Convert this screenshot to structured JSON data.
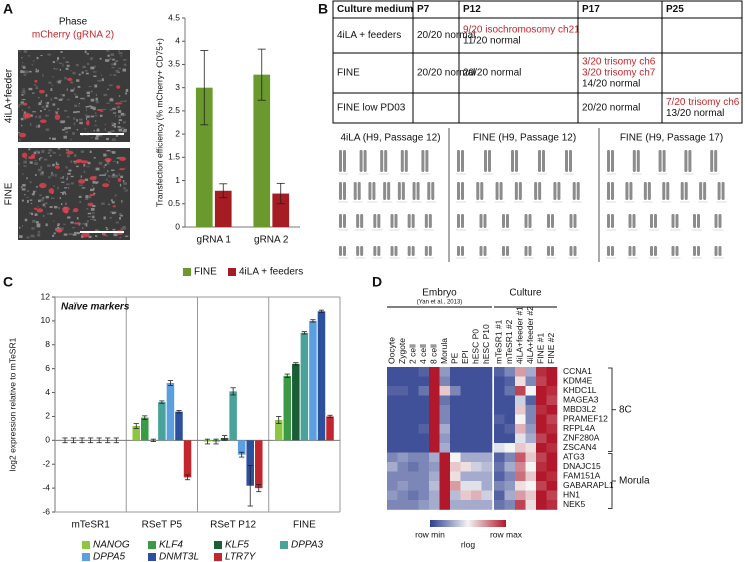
{
  "panel_labels": [
    "A",
    "B",
    "C",
    "D"
  ],
  "panel_a": {
    "column_labels": [
      "Phase",
      "mCherry (gRNA 2)"
    ],
    "row_labels": [
      "4iLA+feeder",
      "FINE"
    ]
  },
  "chart_data": [
    {
      "type": "bar",
      "y_label": "Transfection efficiency (% mCherry+ CD75+)",
      "categories": [
        "gRNA 1",
        "gRNA 2"
      ],
      "series": [
        {
          "name": "FINE",
          "color": "#6a9a2e",
          "values": [
            3.0,
            3.28
          ],
          "errors": [
            0.8,
            0.55
          ]
        },
        {
          "name": "4iLA + feeders",
          "color": "#a51c22",
          "values": [
            0.78,
            0.72
          ],
          "errors": [
            0.15,
            0.22
          ]
        }
      ],
      "ylim": [
        0,
        4.5
      ],
      "yticks": [
        0,
        0.5,
        1,
        1.5,
        2,
        2.5,
        3,
        3.5,
        4,
        4.5
      ],
      "legend": "bottom"
    },
    {
      "type": "bar",
      "annotation": "Naïve markers",
      "y_label": "log2 expression relative to mTeSR1",
      "categories": [
        "mTeSR1",
        "RSeT P5",
        "RSeT P12",
        "FINE"
      ],
      "series": [
        {
          "name": "NANOG",
          "color": "#8dc63f",
          "values": [
            0,
            1.2,
            -0.1,
            1.7
          ],
          "errors": [
            0.2,
            0.2,
            0.2,
            0.3
          ]
        },
        {
          "name": "KLF4",
          "color": "#3a9a46",
          "values": [
            0,
            1.9,
            -0.1,
            5.4
          ],
          "errors": [
            0.2,
            0.15,
            0.2,
            0.15
          ]
        },
        {
          "name": "KLF5",
          "color": "#1b5e35",
          "values": [
            0,
            0.0,
            0.2,
            6.4
          ],
          "errors": [
            0.2,
            0.1,
            0.2,
            0.1
          ]
        },
        {
          "name": "DPPA3",
          "color": "#4aa39a",
          "values": [
            0,
            3.2,
            4.1,
            9.0
          ],
          "errors": [
            0.2,
            0.1,
            0.3,
            0.1
          ]
        },
        {
          "name": "DPPA5",
          "color": "#5aa0e0",
          "values": [
            0,
            4.8,
            -1.2,
            10.0
          ],
          "errors": [
            0.2,
            0.2,
            0.2,
            0.1
          ]
        },
        {
          "name": "DNMT3L",
          "color": "#2c4f9e",
          "values": [
            0,
            2.4,
            -3.8,
            10.8
          ],
          "errors": [
            0.2,
            0.1,
            1.7,
            0.1
          ]
        },
        {
          "name": "LTR7Y",
          "color": "#c1272d",
          "values": [
            0,
            -3.1,
            -4.0,
            2.0
          ],
          "errors": [
            0.2,
            0.2,
            0.3,
            0.1
          ]
        }
      ],
      "ylim": [
        -6,
        12
      ],
      "yticks": [
        -6,
        -4,
        -2,
        0,
        2,
        4,
        6,
        8,
        10,
        12
      ],
      "legend": "bottom"
    },
    {
      "type": "heatmap",
      "column_groups": [
        {
          "label": "Embryo",
          "note": "(Yan et al., 2013)",
          "columns": [
            "Oocyte",
            "Zygote",
            "2 cell",
            "4 cell",
            "8 cell",
            "Morula",
            "PE",
            "EPI",
            "hESC P0",
            "hESC P10"
          ]
        },
        {
          "label": "Culture",
          "columns": [
            "mTeSR1 #1",
            "mTeSR1 #2",
            "4iLA+feeder #1",
            "4iLA+feeder #2",
            "FINE #1",
            "FINE #2"
          ]
        }
      ],
      "row_groups": [
        {
          "label": "8C",
          "rows": [
            "CCNA1",
            "KDM4E",
            "KHDC1L",
            "MAGEA3",
            "MBD3L2",
            "PRAMEF12",
            "RFPL4A",
            "ZNF280A",
            "ZSCAN4"
          ]
        },
        {
          "label": "Morula",
          "rows": [
            "ATG3",
            "DNAJC15",
            "FAM151A",
            "GABARAPL1",
            "HN1",
            "NEK5"
          ]
        }
      ],
      "values": [
        [
          0.05,
          0.05,
          0.05,
          0.1,
          1,
          0.25,
          0.05,
          0.05,
          0.05,
          0.05,
          0.1,
          0.2,
          0.7,
          0.3,
          0.95,
          1
        ],
        [
          0.05,
          0.05,
          0.05,
          0.05,
          1,
          0.2,
          0.05,
          0.05,
          0.05,
          0.05,
          0.05,
          0.1,
          0.55,
          0.2,
          0.9,
          1
        ],
        [
          0.1,
          0.1,
          0.05,
          0.15,
          1,
          0.6,
          0.2,
          0.05,
          0.05,
          0.05,
          0.05,
          0.15,
          0.9,
          0.5,
          1,
          0.95
        ],
        [
          0.05,
          0.05,
          0.05,
          0.05,
          1,
          0.15,
          0.05,
          0.05,
          0.05,
          0.05,
          0.05,
          0.05,
          0.4,
          0.1,
          1,
          0.9
        ],
        [
          0.05,
          0.05,
          0.05,
          0.05,
          1,
          0.2,
          0.05,
          0.05,
          0.05,
          0.05,
          0.05,
          0.05,
          0.6,
          0.2,
          0.95,
          1
        ],
        [
          0.05,
          0.05,
          0.05,
          0.05,
          1,
          0.2,
          0.05,
          0.05,
          0.05,
          0.05,
          0.1,
          0.05,
          0.5,
          0.2,
          1,
          0.9
        ],
        [
          0.05,
          0.05,
          0.05,
          0.1,
          1,
          0.3,
          0.05,
          0.05,
          0.05,
          0.05,
          0.05,
          0.1,
          0.65,
          0.25,
          1,
          0.95
        ],
        [
          0.05,
          0.05,
          0.05,
          0.05,
          1,
          0.25,
          0.05,
          0.05,
          0.05,
          0.05,
          0.05,
          0.05,
          0.45,
          0.3,
          0.9,
          1
        ],
        [
          0.05,
          0.05,
          0.05,
          0.05,
          1,
          0.3,
          0.05,
          0.05,
          0.05,
          0.05,
          0.45,
          0.5,
          0.6,
          0.55,
          1,
          0.95
        ],
        [
          0.2,
          0.25,
          0.2,
          0.2,
          0.3,
          1,
          0.5,
          0.3,
          0.3,
          0.3,
          0.1,
          0.2,
          0.85,
          0.6,
          0.9,
          1
        ],
        [
          0.3,
          0.2,
          0.15,
          0.2,
          0.25,
          1,
          0.6,
          0.55,
          0.4,
          0.35,
          0.15,
          0.3,
          0.75,
          0.5,
          0.95,
          1
        ],
        [
          0.2,
          0.2,
          0.2,
          0.2,
          0.3,
          1,
          0.55,
          0.3,
          0.3,
          0.3,
          0.1,
          0.2,
          0.8,
          0.6,
          1,
          0.95
        ],
        [
          0.2,
          0.25,
          0.2,
          0.2,
          0.35,
          1,
          0.7,
          0.45,
          0.45,
          0.3,
          0.2,
          0.25,
          0.55,
          0.5,
          0.9,
          1
        ],
        [
          0.25,
          0.2,
          0.15,
          0.2,
          0.3,
          1,
          0.35,
          0.6,
          0.65,
          0.4,
          0.1,
          0.3,
          0.7,
          0.6,
          1,
          0.9
        ],
        [
          0.2,
          0.2,
          0.2,
          0.25,
          0.3,
          1,
          0.3,
          0.3,
          0.3,
          0.3,
          0.15,
          0.2,
          0.9,
          0.55,
          1,
          0.95
        ]
      ],
      "zlim": [
        0,
        1
      ],
      "colorscale": {
        "colors": [
          "#2c3e8f",
          "#f4f4f4",
          "#b2182b"
        ],
        "title": "rlog",
        "min_label": "row min",
        "max_label": "row max"
      }
    }
  ],
  "table": {
    "header": [
      "Culture medium",
      "P7",
      "P12",
      "P17",
      "P25"
    ],
    "rows": [
      [
        [
          "4iLA + feeders"
        ],
        [
          "20/20 normal"
        ],
        [
          {
            "text": "9/20 isochromosomy ch21",
            "color": "#c1272d"
          },
          "11/20 normal"
        ],
        [],
        []
      ],
      [
        [
          "FINE"
        ],
        [
          "20/20 normal"
        ],
        [
          "20/20 normal"
        ],
        [
          {
            "text": "3/20 trisomy ch6",
            "color": "#c1272d"
          },
          {
            "text": "3/20 trisomy ch7",
            "color": "#c1272d"
          },
          "14/20 normal"
        ],
        []
      ],
      [
        [
          "FINE low PD03"
        ],
        [],
        [],
        [
          "20/20 normal"
        ],
        [
          {
            "text": "7/20 trisomy ch6",
            "color": "#c1272d"
          },
          "13/20 normal"
        ]
      ]
    ]
  },
  "karyotypes": [
    "4iLA (H9, Passage 12)",
    "FINE (H9, Passage 12)",
    "FINE (H9, Passage 17)"
  ]
}
